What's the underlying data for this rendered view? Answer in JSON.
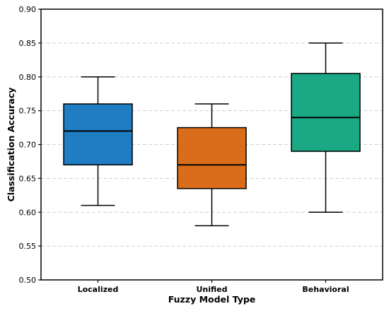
{
  "chart_data": {
    "type": "box",
    "title": "",
    "xlabel": "Fuzzy Model Type",
    "ylabel": "Classification Accuracy",
    "ylim": [
      0.5,
      0.9
    ],
    "yticks": [
      "0.50",
      "0.55",
      "0.60",
      "0.65",
      "0.70",
      "0.75",
      "0.80",
      "0.85",
      "0.90"
    ],
    "grid": "horizontal dashed",
    "categories": [
      "Localized",
      "Unified",
      "Behavioral"
    ],
    "boxes": [
      {
        "category": "Localized",
        "whisker_low": 0.61,
        "q1": 0.67,
        "median": 0.72,
        "q3": 0.76,
        "whisker_high": 0.8,
        "color": "#1f7dc4"
      },
      {
        "category": "Unified",
        "whisker_low": 0.58,
        "q1": 0.635,
        "median": 0.67,
        "q3": 0.725,
        "whisker_high": 0.76,
        "color": "#d96d1a"
      },
      {
        "category": "Behavioral",
        "whisker_low": 0.6,
        "q1": 0.69,
        "median": 0.74,
        "q3": 0.805,
        "whisker_high": 0.85,
        "color": "#1aa984"
      }
    ]
  }
}
